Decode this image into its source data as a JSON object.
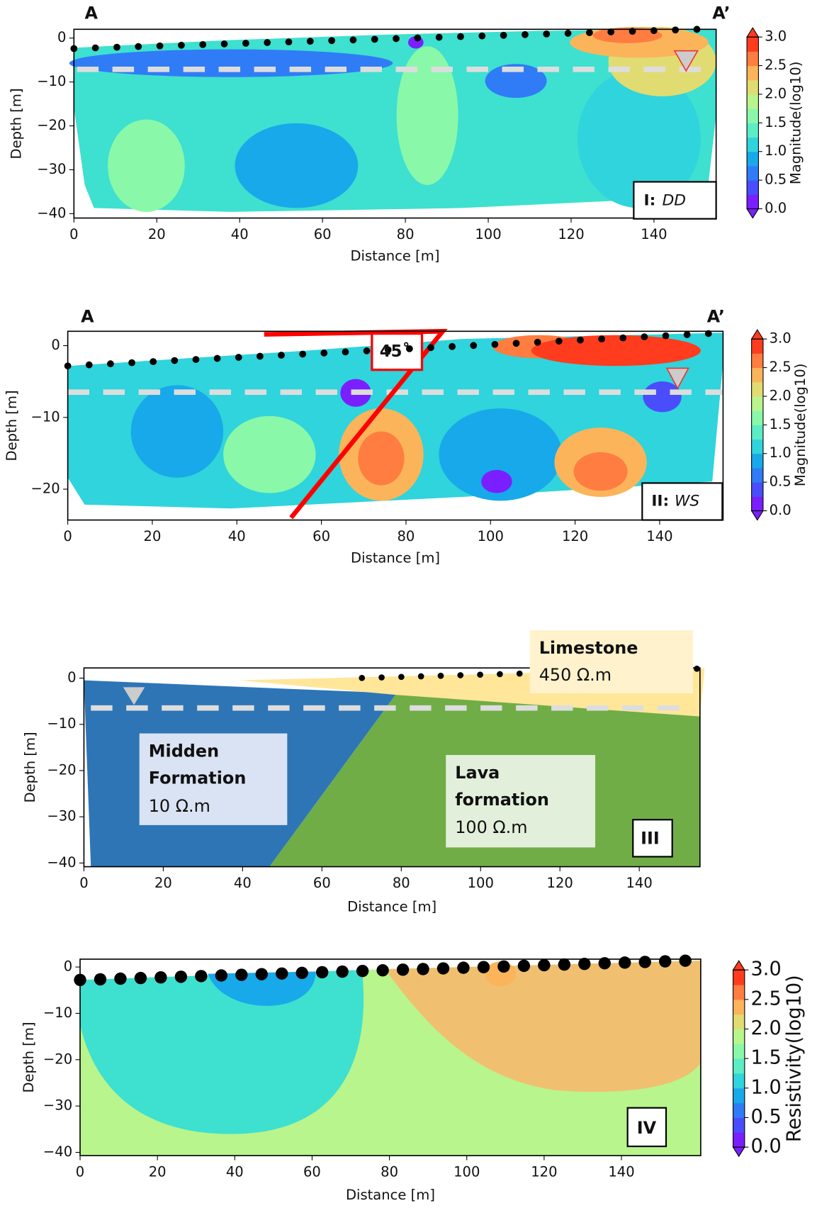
{
  "chart_data": [
    {
      "type": "contour",
      "xlabel": "Distance [m]",
      "ylabel": "Depth [m]",
      "xlim": [
        0,
        155
      ],
      "ylim": [
        -41,
        2
      ],
      "xticks": [
        0,
        20,
        40,
        60,
        80,
        100,
        120,
        140
      ],
      "yticks": [
        {
          "value": -40,
          "label": "−40"
        },
        {
          "value": -30,
          "label": "−30"
        },
        {
          "value": -20,
          "label": "−20"
        },
        {
          "value": -10,
          "label": "−10"
        },
        0
      ],
      "annotations": [
        "A",
        "A’",
        "I:",
        "DD"
      ],
      "colorbar": {
        "label": "Magnitude(log10)",
        "lim": [
          0,
          3
        ],
        "ticks": [
          {
            "value": 0,
            "label": "0.0"
          },
          0.5,
          {
            "value": 1,
            "label": "1.0"
          },
          1.5,
          {
            "value": 2,
            "label": "2.0"
          },
          2.5,
          {
            "value": 3,
            "label": "3.0"
          }
        ],
        "colors": [
          "#7a1fff",
          "#4a4dfb",
          "#2f7cf6",
          "#18a9ea",
          "#2fd4dc",
          "#5cecc6",
          "#8af8a9",
          "#b8f58c",
          "#e0dc72",
          "#fbb45a",
          "#ff7d40",
          "#ff3c1e"
        ]
      }
    },
    {
      "type": "contour",
      "xlabel": "Distance [m]",
      "ylabel": "Depth [m]",
      "xlim": [
        0,
        155
      ],
      "ylim": [
        -24.3,
        2
      ],
      "xticks": [
        0,
        20,
        40,
        60,
        80,
        100,
        120,
        140
      ],
      "yticks": [
        {
          "value": -20,
          "label": "−20"
        },
        {
          "value": -10,
          "label": "−10"
        },
        0
      ],
      "annotations": [
        "A",
        "A’",
        "45˚",
        "II:",
        "WS"
      ],
      "colorbar": {
        "label": "Magnitude(log10)",
        "lim": [
          0,
          3
        ],
        "ticks": [
          {
            "value": 0,
            "label": "0.0"
          },
          0.5,
          {
            "value": 1,
            "label": "1.0"
          },
          1.5,
          {
            "value": 2,
            "label": "2.0"
          },
          2.5,
          {
            "value": 3,
            "label": "3.0"
          }
        ],
        "colors": [
          "#7a1fff",
          "#4a4dfb",
          "#2f7cf6",
          "#18a9ea",
          "#2fd4dc",
          "#5cecc6",
          "#8af8a9",
          "#b8f58c",
          "#e0dc72",
          "#fbb45a",
          "#ff7d40",
          "#ff3c1e"
        ]
      }
    },
    {
      "type": "section",
      "xlabel": "Distance [m]",
      "ylabel": "Depth [m]",
      "xlim": [
        0,
        155.3
      ],
      "ylim": [
        -40.8,
        2.2
      ],
      "xticks": [
        0,
        20,
        40,
        60,
        80,
        100,
        120,
        140
      ],
      "yticks": [
        {
          "value": -40,
          "label": "−40"
        },
        {
          "value": -30,
          "label": "−30"
        },
        {
          "value": -20,
          "label": "−20"
        },
        {
          "value": -10,
          "label": "−10"
        },
        0
      ],
      "annotations": [
        "Limestone",
        "450 Ω.m",
        "Midden",
        "Formation",
        "10 Ω.m",
        "Lava",
        "formation",
        "100 Ω.m",
        "III"
      ]
    },
    {
      "type": "contour",
      "xlabel": "Distance [m]",
      "ylabel": "Depth [m]",
      "xlim": [
        0,
        160.5
      ],
      "ylim": [
        -40.7,
        1.7
      ],
      "xticks": [
        0,
        20,
        40,
        60,
        80,
        100,
        120,
        140
      ],
      "yticks": [
        {
          "value": -40,
          "label": "−40"
        },
        {
          "value": -30,
          "label": "−30"
        },
        {
          "value": -20,
          "label": "−20"
        },
        {
          "value": -10,
          "label": "−10"
        },
        0
      ],
      "annotations": [
        "IV"
      ],
      "colorbar": {
        "label": "Resistivity(log10)",
        "lim": [
          0,
          3
        ],
        "ticks": [
          {
            "value": 0,
            "label": "0.0"
          },
          0.5,
          {
            "value": 1,
            "label": "1.0"
          },
          1.5,
          {
            "value": 2,
            "label": "2.0"
          },
          2.5,
          {
            "value": 3,
            "label": "3.0"
          }
        ],
        "colors": [
          "#7a1fff",
          "#4a4dfb",
          "#2f7cf6",
          "#18a9ea",
          "#2fd4dc",
          "#5cecc6",
          "#8af8a9",
          "#b8f58c",
          "#e0dc72",
          "#fbb45a",
          "#ff7d40",
          "#ff3c1e"
        ]
      }
    }
  ]
}
